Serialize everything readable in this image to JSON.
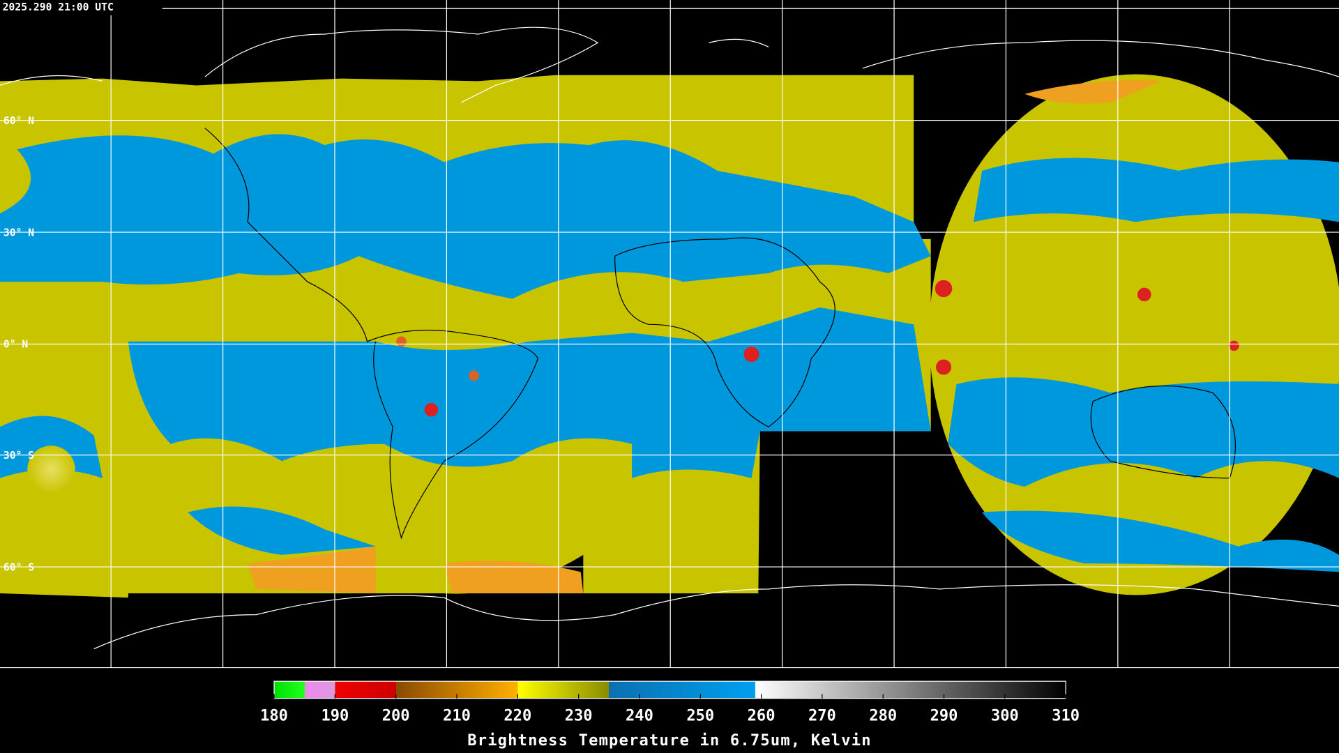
{
  "header": {
    "timestamp": "2025.290 21:00 UTC"
  },
  "map": {
    "latitude_labels": [
      "60° N",
      "30° N",
      "0° N",
      "30° S",
      "60° S"
    ]
  },
  "colorbar": {
    "lim": [
      180,
      310
    ],
    "ticks": [
      180,
      190,
      200,
      210,
      220,
      230,
      240,
      250,
      260,
      270,
      280,
      290,
      300,
      310
    ],
    "label": "Brightness Temperature in 6.75um, Kelvin"
  }
}
